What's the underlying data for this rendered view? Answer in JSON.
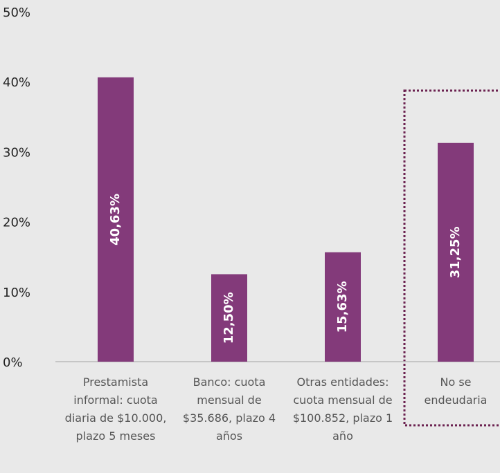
{
  "chart_data": {
    "type": "bar",
    "categories": [
      "Prestamista informal: cuota diaria de $10.000,  plazo 5 meses",
      "Banco: cuota mensual de $35.686, plazo 4 años",
      "Otras entidades: cuota mensual de $100.852, plazo 1 año",
      "No se endeudaria"
    ],
    "values": [
      40.63,
      12.5,
      15.63,
      31.25
    ],
    "value_labels": [
      "40,63%",
      "12,50%",
      "15,63%",
      "31,25%"
    ],
    "color": "#833a7a",
    "ylim": [
      0,
      50
    ],
    "yticks": [
      {
        "value": 0,
        "label": "0%"
      },
      {
        "value": 10,
        "label": "10%"
      },
      {
        "value": 20,
        "label": "20%"
      },
      {
        "value": 30,
        "label": "30%"
      },
      {
        "value": 40,
        "label": "40%"
      },
      {
        "value": 50,
        "label": "50%"
      }
    ],
    "grid": false
  }
}
